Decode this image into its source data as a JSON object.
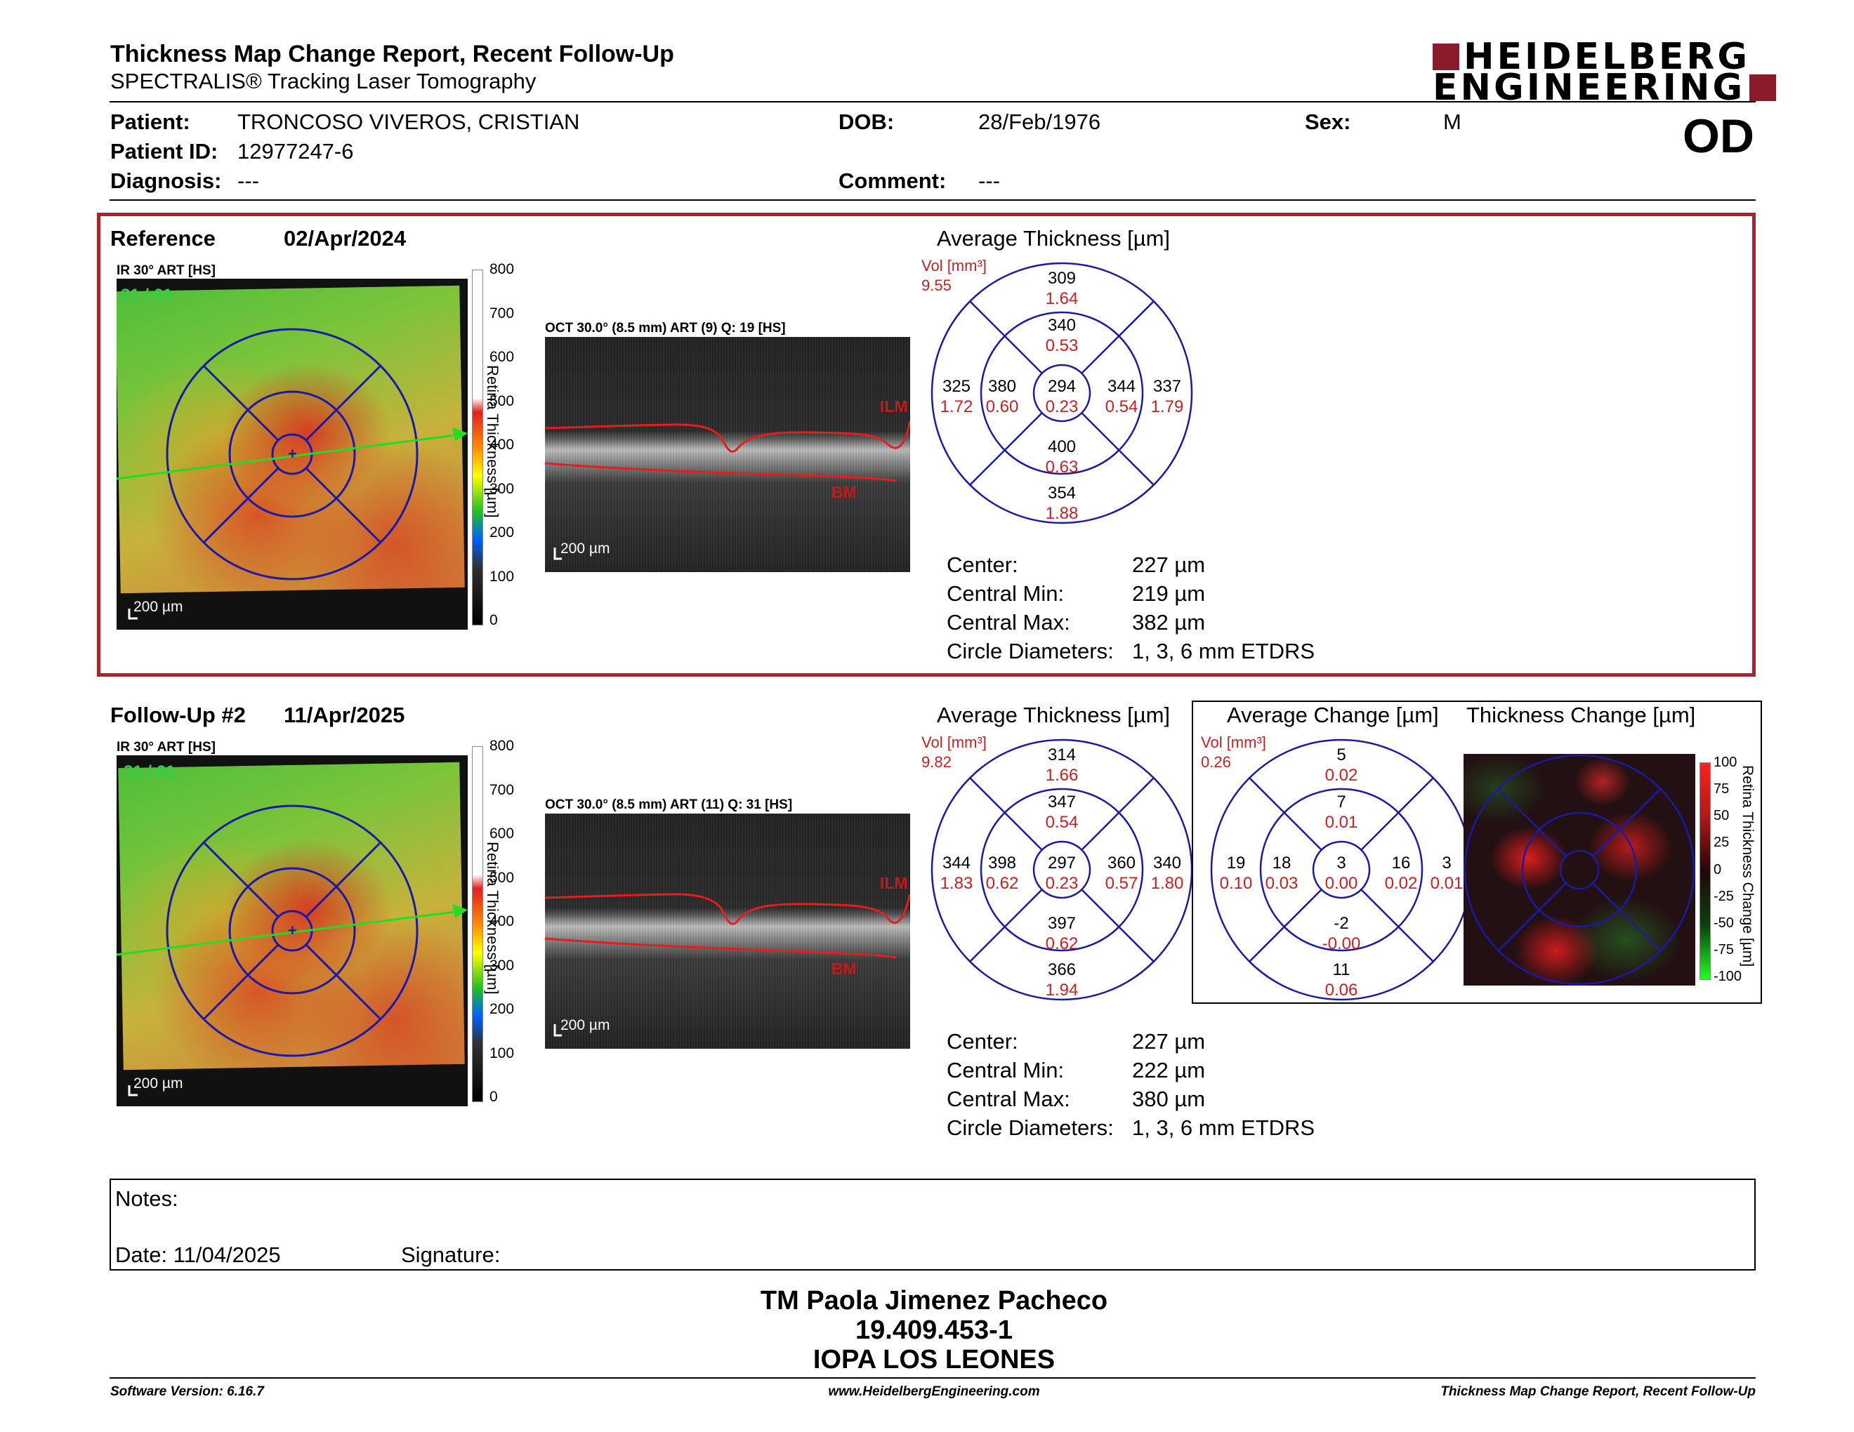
{
  "header": {
    "title": "Thickness Map Change Report, Recent Follow-Up",
    "subtitle": "SPECTRALIS® Tracking Laser Tomography",
    "logo_line1": "HEIDELBERG",
    "logo_line2": "ENGINEERING",
    "eye": "OD",
    "logo_color": "#8b1a2b"
  },
  "patient": {
    "patient_label": "Patient:",
    "patient_value": "TRONCOSO VIVEROS, CRISTIAN",
    "patient_id_label": "Patient ID:",
    "patient_id_value": "12977247-6",
    "diagnosis_label": "Diagnosis:",
    "diagnosis_value": "---",
    "dob_label": "DOB:",
    "dob_value": "28/Feb/1976",
    "comment_label": "Comment:",
    "comment_value": "---",
    "sex_label": "Sex:",
    "sex_value": "M"
  },
  "common": {
    "ir_label": "IR 30° ART [HS]",
    "ir_counter": "31 / 61",
    "scale_bar": "200 µm",
    "colorbar_title": "Retina Thickness [µm]",
    "colorbar_ticks": [
      "800",
      "700",
      "600",
      "500",
      "400",
      "300",
      "200",
      "100",
      "0"
    ],
    "avg_thickness_title": "Average Thickness [µm]",
    "vol_label": "Vol [mm³]",
    "ilm": "ILM",
    "bm": "BM",
    "center_label": "Center:",
    "central_min_label": "Central Min:",
    "central_max_label": "Central Max:",
    "circle_diam_label": "Circle Diameters:",
    "circle_diam_value": "1, 3, 6 mm ETDRS",
    "accent_red": "#cc1f1f",
    "ring_blue": "#1a1aa6",
    "box_red": "#b1202a"
  },
  "reference": {
    "label": "Reference",
    "date": "02/Apr/2024",
    "oct_label": "OCT 30.0° (8.5 mm) ART (9) Q: 19 [HS]",
    "vol_total": "9.55",
    "center": "227 µm",
    "central_min": "219 µm",
    "central_max": "382 µm",
    "etdrs": {
      "outer_top": [
        "309",
        "1.64"
      ],
      "inner_top": [
        "340",
        "0.53"
      ],
      "outer_left": [
        "325",
        "1.72"
      ],
      "inner_left": [
        "380",
        "0.60"
      ],
      "center": [
        "294",
        "0.23"
      ],
      "inner_right": [
        "344",
        "0.54"
      ],
      "outer_right": [
        "337",
        "1.79"
      ],
      "inner_bottom": [
        "400",
        "0.63"
      ],
      "outer_bottom": [
        "354",
        "1.88"
      ]
    }
  },
  "followup": {
    "label": "Follow-Up #2",
    "date": "11/Apr/2025",
    "oct_label": "OCT 30.0° (8.5 mm) ART (11) Q: 31 [HS]",
    "vol_total": "9.82",
    "center": "227 µm",
    "central_min": "222 µm",
    "central_max": "380 µm",
    "etdrs": {
      "outer_top": [
        "314",
        "1.66"
      ],
      "inner_top": [
        "347",
        "0.54"
      ],
      "outer_left": [
        "344",
        "1.83"
      ],
      "inner_left": [
        "398",
        "0.62"
      ],
      "center": [
        "297",
        "0.23"
      ],
      "inner_right": [
        "360",
        "0.57"
      ],
      "outer_right": [
        "340",
        "1.80"
      ],
      "inner_bottom": [
        "397",
        "0.62"
      ],
      "outer_bottom": [
        "366",
        "1.94"
      ]
    }
  },
  "change": {
    "avg_change_title": "Average Change [µm]",
    "thickness_change_title": "Thickness Change [µm]",
    "vol_total": "0.26",
    "colorbar_title": "Retina Thickness Change [µm]",
    "colorbar_ticks": [
      "100",
      "75",
      "50",
      "25",
      "0",
      "-25",
      "-50",
      "-75",
      "-100"
    ],
    "etdrs": {
      "outer_top": [
        "5",
        "0.02"
      ],
      "inner_top": [
        "7",
        "0.01"
      ],
      "outer_left": [
        "19",
        "0.10"
      ],
      "inner_left": [
        "18",
        "0.03"
      ],
      "center": [
        "3",
        "0.00"
      ],
      "inner_right": [
        "16",
        "0.02"
      ],
      "outer_right": [
        "3",
        "0.01"
      ],
      "inner_bottom": [
        "-2",
        "-0.00"
      ],
      "outer_bottom": [
        "11",
        "0.06"
      ]
    }
  },
  "notes": {
    "notes_label": "Notes:",
    "date_label": "Date: 11/04/2025",
    "signature_label": "Signature:"
  },
  "footer": {
    "name": "TM Paola Jimenez Pacheco",
    "id": "19.409.453-1",
    "org": "IOPA LOS LEONES",
    "software": "Software Version: 6.16.7",
    "website": "www.HeidelbergEngineering.com",
    "report_name": "Thickness Map Change Report, Recent Follow-Up"
  }
}
